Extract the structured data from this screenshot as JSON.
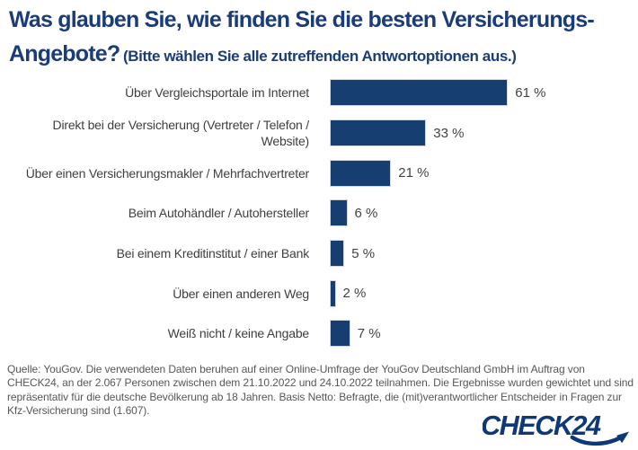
{
  "title": {
    "line1": "Was glauben Sie, wie finden Sie die besten Versicherungs-",
    "line2": "Angebote?",
    "subtitle": "(Bitte wählen Sie alle zutreffenden Antwortoptionen aus.)"
  },
  "chart_data": {
    "type": "bar",
    "orientation": "horizontal",
    "title": "Was glauben Sie, wie finden Sie die besten Versicherungs-Angebote?",
    "subtitle": "(Bitte wählen Sie alle zutreffenden Antwortoptionen aus.)",
    "categories": [
      "Über Vergleichsportale im Internet",
      "Direkt bei der Versicherung (Vertreter / Telefon / Website)",
      "Über einen Versicherungsmakler / Mehrfachvertreter",
      "Beim Autohändler / Autohersteller",
      "Bei einem Kreditinstitut / einer Bank",
      "Über einen anderen Weg",
      "Weiß nicht / keine Angabe"
    ],
    "values": [
      61,
      33,
      21,
      6,
      5,
      2,
      7
    ],
    "value_labels": [
      "61 %",
      "33 %",
      "21 %",
      "6 %",
      "5 %",
      "2 %",
      "7 %"
    ],
    "value_suffix": " %",
    "xlabel": "",
    "ylabel": "",
    "xlim": [
      0,
      100
    ],
    "grid": false,
    "legend": false,
    "bar_color": "#163E70"
  },
  "footer": {
    "source_lines": [
      "Quelle: YouGov. Die verwendeten Daten beruhen auf einer Online-Umfrage der YouGov Deutschland GmbH im Auftrag von",
      "CHECK24, an der 2.067 Personen zwischen dem 21.10.2022 und 24.10.2022 teilnahmen. Die Ergebnisse wurden gewichtet und sind",
      "repräsentativ für die deutsche Bevölkerung ab 18 Jahren. Basis Netto: Befragte, die (mit)verantwortlicher Entscheider in Fragen zur",
      "Kfz-Versicherung sind (1.607)."
    ]
  },
  "logo": {
    "text": "CHECK24",
    "color": "#0E3878"
  },
  "colors": {
    "title": "#1A3C78",
    "bar": "#163E70",
    "label": "#3F3F3F",
    "value": "#424242",
    "footer": "#57575B"
  }
}
